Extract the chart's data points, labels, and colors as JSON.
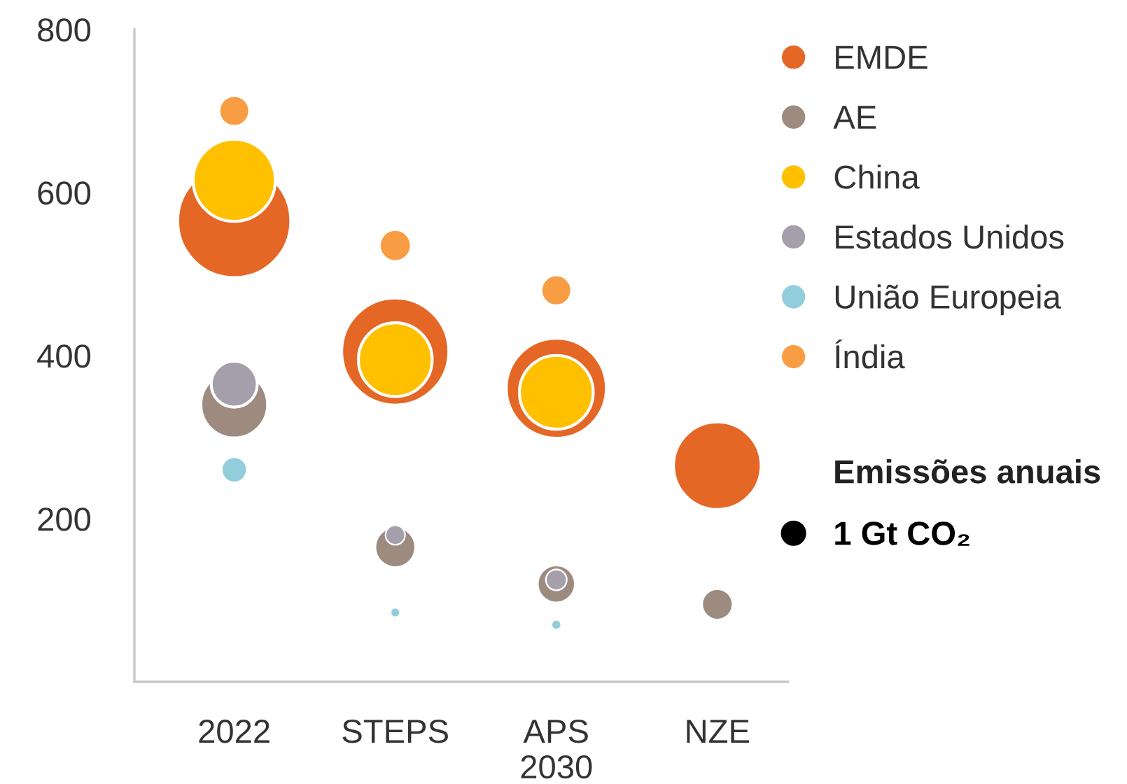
{
  "chart_data": {
    "type": "bubble",
    "categories": [
      "2022",
      "STEPS",
      "APS\n2030",
      "NZE"
    ],
    "series": [
      {
        "name": "EMDE",
        "color": "#e46726",
        "values": [
          565,
          405,
          360,
          265
        ],
        "sizes": [
          23.5,
          21.1,
          18.4,
          14.1
        ]
      },
      {
        "name": "AE",
        "color": "#9e8b80",
        "values": [
          340,
          165,
          120,
          95
        ],
        "sizes": [
          8.2,
          3.1,
          2.7,
          1.8
        ]
      },
      {
        "name": "China",
        "color": "#ffc000",
        "values": [
          615,
          395,
          355,
          null
        ],
        "sizes": [
          12.4,
          10.0,
          10.0,
          null
        ]
      },
      {
        "name": "Estados Unidos",
        "color": "#a59fab",
        "values": [
          365,
          180,
          125,
          null
        ],
        "sizes": [
          3.9,
          0.7,
          0.8,
          null
        ]
      },
      {
        "name": "União Europeia",
        "color": "#92cddc",
        "values": [
          260,
          85,
          70,
          null
        ],
        "sizes": [
          1.2,
          0.13,
          0.14,
          null
        ]
      },
      {
        "name": "Índia",
        "color": "#f99d45",
        "values": [
          700,
          535,
          480,
          null
        ],
        "sizes": [
          1.7,
          1.85,
          1.7,
          null
        ]
      }
    ],
    "ylim": [
      0,
      800
    ],
    "yticks": [
      200,
      400,
      600,
      800
    ],
    "legend": "right",
    "legend_title": "Emissões anuais",
    "size_legend": [
      {
        "value": 1,
        "label": "1 Gt CO₂"
      }
    ]
  }
}
